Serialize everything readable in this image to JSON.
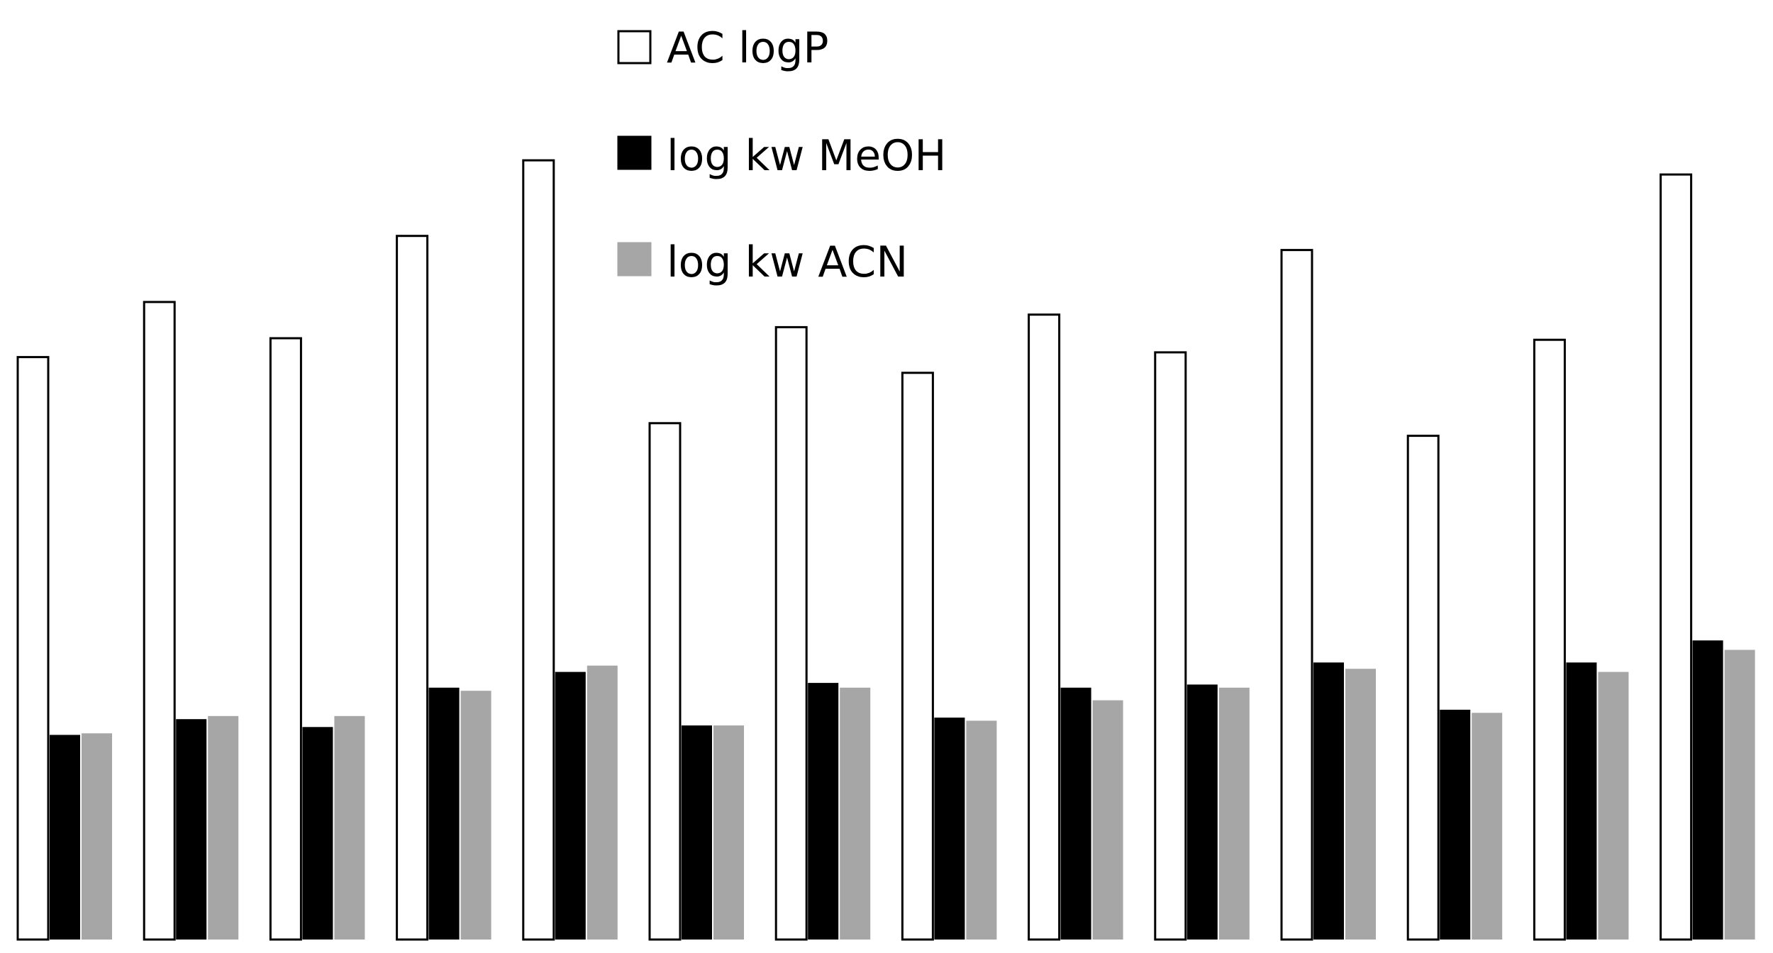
{
  "chart_data": {
    "type": "bar",
    "title": "",
    "xlabel": "",
    "ylabel": "",
    "categories": [
      "",
      "",
      "",
      "",
      "",
      "",
      "",
      "",
      "",
      "",
      "",
      "",
      "",
      ""
    ],
    "series": [
      {
        "name": "AC logP",
        "color": "#ffffff",
        "values": [
          3.7,
          4.05,
          3.82,
          4.47,
          4.95,
          3.28,
          3.89,
          3.6,
          3.97,
          3.73,
          4.38,
          3.2,
          3.81,
          4.86
        ]
      },
      {
        "name": "log kw MeOH",
        "color": "#000000",
        "values": [
          1.3,
          1.4,
          1.35,
          1.6,
          1.7,
          1.36,
          1.63,
          1.41,
          1.6,
          1.62,
          1.76,
          1.46,
          1.76,
          1.9
        ]
      },
      {
        "name": "log kw ACN",
        "color": "#a6a6a6",
        "values": [
          1.31,
          1.42,
          1.42,
          1.58,
          1.74,
          1.36,
          1.6,
          1.39,
          1.52,
          1.6,
          1.72,
          1.44,
          1.7,
          1.84
        ]
      }
    ],
    "ylim": [
      0,
      5
    ],
    "grid": false,
    "legend": "top-center"
  }
}
